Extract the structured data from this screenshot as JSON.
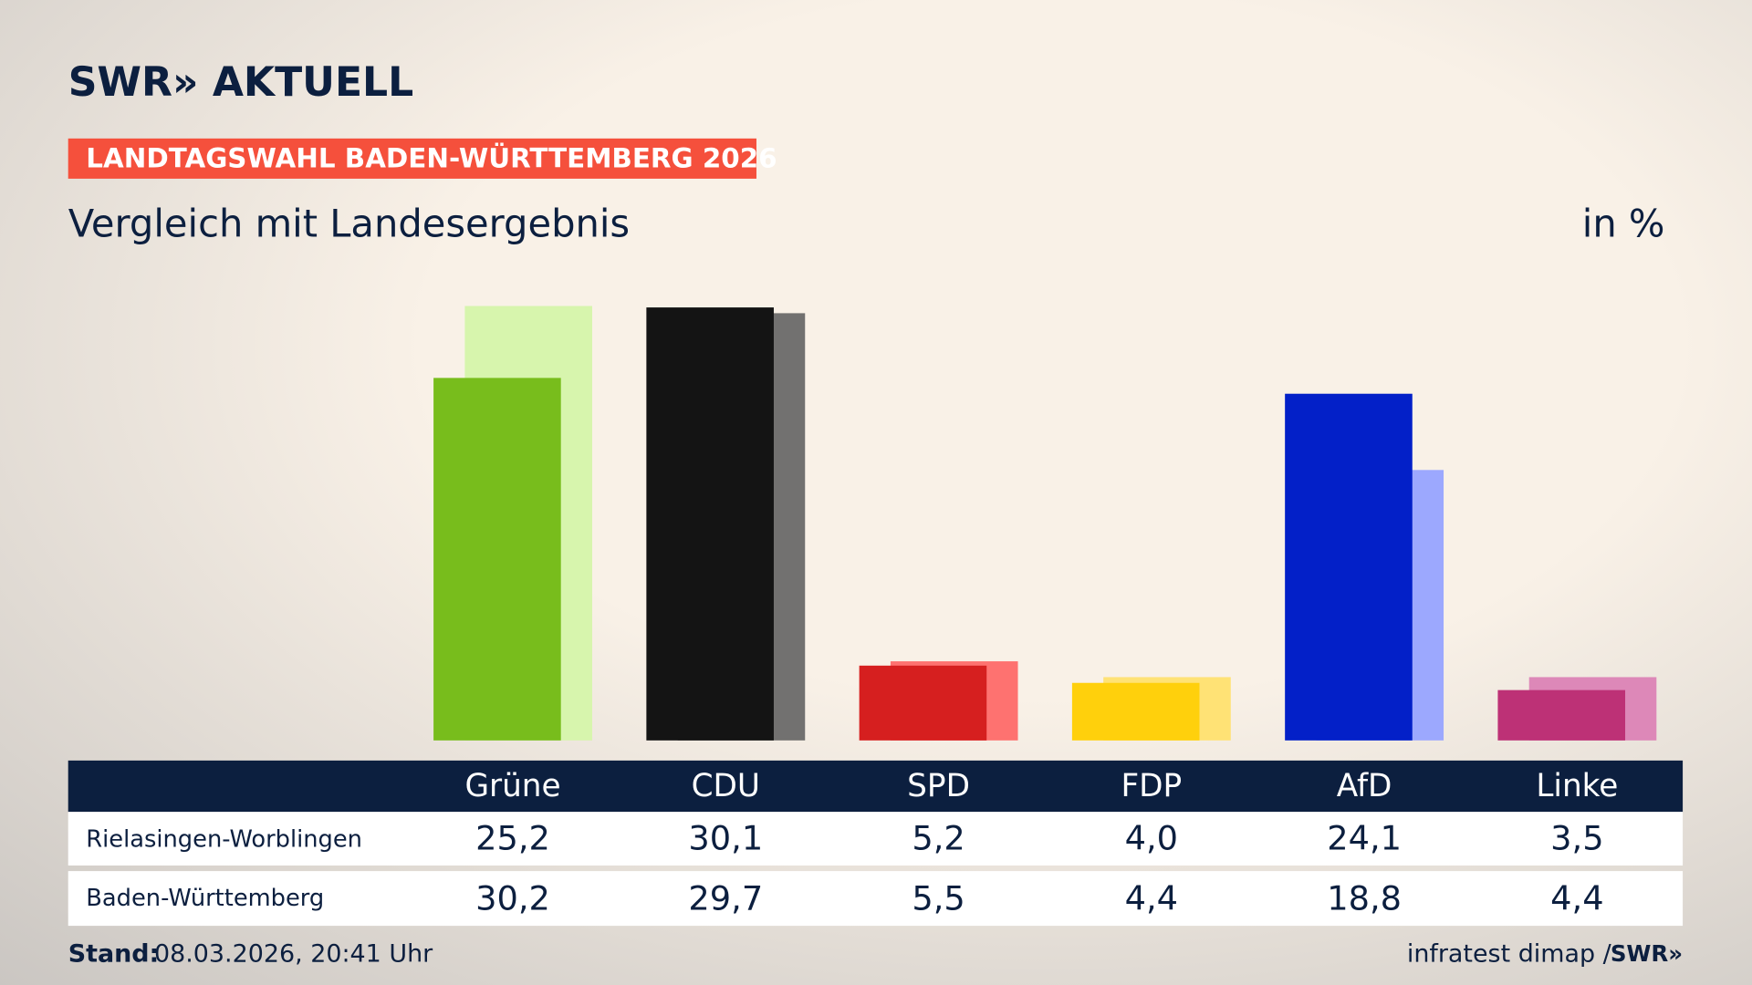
{
  "header": {
    "logo": "SWR» AKTUELL",
    "banner": "LANDTAGSWAHL BADEN-WÜRTTEMBERG 2026"
  },
  "chart_data": {
    "type": "bar",
    "title": "Vergleich mit Landesergebnis",
    "unit": "in %",
    "categories": [
      "Grüne",
      "CDU",
      "SPD",
      "FDP",
      "AfD",
      "Linke"
    ],
    "series": [
      {
        "name": "Rielasingen-Worblingen",
        "values": [
          25.2,
          30.1,
          5.2,
          4.0,
          24.1,
          3.5
        ],
        "value_labels": [
          "25,2",
          "30,1",
          "5,2",
          "4,0",
          "24,1",
          "3,5"
        ],
        "color": [
          "#78bd1c",
          "#141414",
          "#d61f1f",
          "#ffd00c",
          "#0320c8",
          "#bd3176"
        ]
      },
      {
        "name": "Baden-Württemberg",
        "values": [
          30.2,
          29.7,
          5.5,
          4.4,
          18.8,
          4.4
        ],
        "value_labels": [
          "30,2",
          "29,7",
          "5,5",
          "4,4",
          "18,8",
          "4,4"
        ],
        "color": [
          "#d7f5ad",
          "#727170",
          "#fe7270",
          "#ffe275",
          "#9ca8fe",
          "#dd88b8"
        ]
      }
    ]
  },
  "footer": {
    "stand_label": "Stand:",
    "stand_value": "08.03.2026, 20:41 Uhr",
    "source": "infratest dimap / ",
    "source_logo": "SWR»"
  }
}
